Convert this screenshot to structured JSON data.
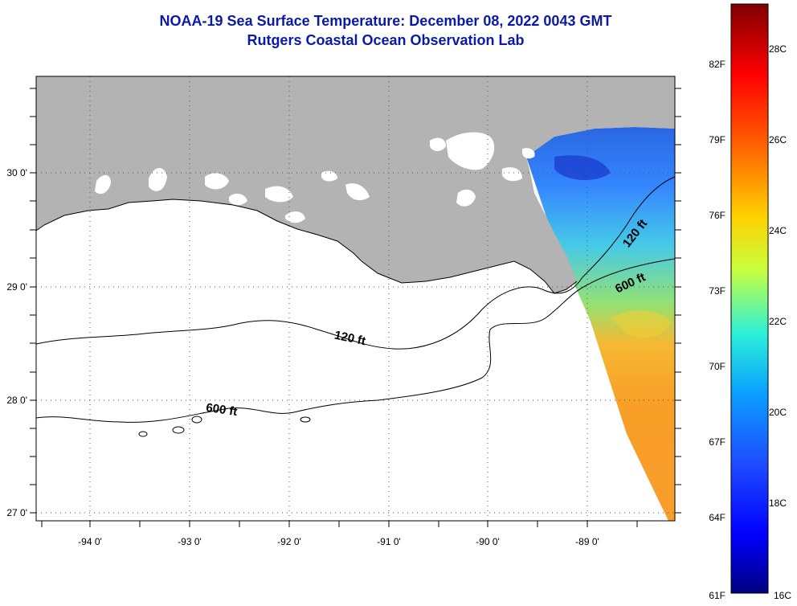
{
  "title": {
    "line1": "NOAA-19 Sea Surface Temperature:  December 08, 2022 0043 GMT",
    "line2": "Rutgers Coastal Ocean Observation Lab"
  },
  "axes": {
    "lon_labels": [
      "-94 0'",
      "-93 0'",
      "-92 0'",
      "-91 0'",
      "-90 0'",
      "-89 0'"
    ],
    "lat_labels": [
      "30 0'",
      "29 0'",
      "28 0'",
      "27 0'"
    ]
  },
  "isobaths": {
    "shelf_120": "120 ft",
    "shelf_600": "600 ft"
  },
  "colorbar": {
    "fahrenheit_labels": [
      "82F",
      "79F",
      "76F",
      "73F",
      "70F",
      "67F",
      "64F",
      "61F"
    ],
    "celsius_labels": [
      "28C",
      "26C",
      "24C",
      "22C",
      "20C",
      "18C",
      "16C"
    ],
    "range_celsius": [
      16,
      29
    ]
  },
  "colors": {
    "land": "#b3b3b3",
    "title": "#0a1aa8"
  }
}
